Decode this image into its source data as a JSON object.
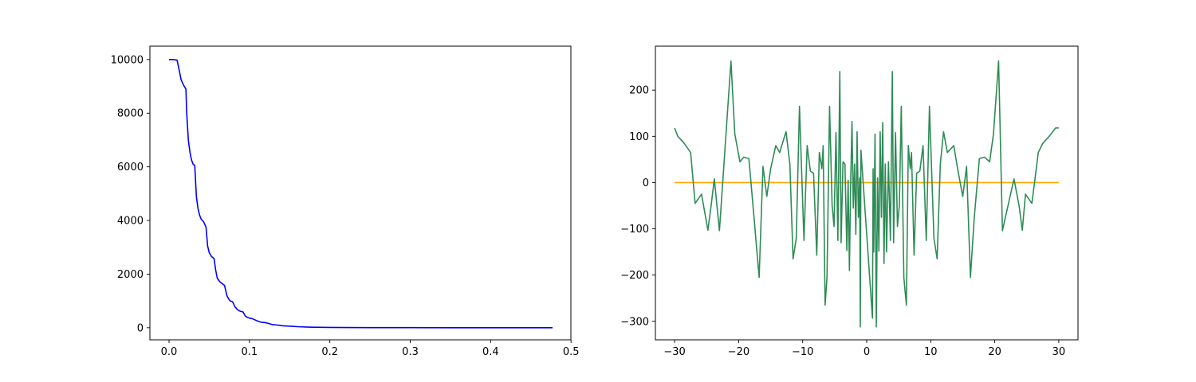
{
  "chart_data": [
    {
      "type": "line",
      "title": "",
      "xlabel": "",
      "ylabel": "",
      "xlim": [
        -0.0238,
        0.4998
      ],
      "ylim": [
        -450,
        10500
      ],
      "xticks": [
        0.0,
        0.1,
        0.2,
        0.3,
        0.4,
        0.5
      ],
      "xtick_labels": [
        "0.0",
        "0.1",
        "0.2",
        "0.3",
        "0.4",
        "0.5"
      ],
      "yticks": [
        0,
        2000,
        4000,
        6000,
        8000,
        10000
      ],
      "ytick_labels": [
        "0",
        "2000",
        "4000",
        "6000",
        "8000",
        "10000"
      ],
      "grid": false,
      "legend": "none",
      "series": [
        {
          "color": "#0000ff",
          "x": [
            0.0,
            0.005,
            0.01,
            0.012,
            0.015,
            0.018,
            0.021,
            0.022,
            0.024,
            0.026,
            0.028,
            0.03,
            0.032,
            0.034,
            0.036,
            0.038,
            0.04,
            0.043,
            0.046,
            0.048,
            0.05,
            0.053,
            0.056,
            0.058,
            0.06,
            0.063,
            0.066,
            0.069,
            0.072,
            0.074,
            0.076,
            0.079,
            0.082,
            0.085,
            0.087,
            0.089,
            0.092,
            0.095,
            0.098,
            0.1,
            0.102,
            0.105,
            0.11,
            0.113,
            0.116,
            0.12,
            0.125,
            0.128,
            0.132,
            0.138,
            0.142,
            0.147,
            0.152,
            0.16,
            0.17,
            0.18,
            0.2,
            0.22,
            0.25,
            0.3,
            0.35,
            0.4,
            0.45,
            0.477
          ],
          "values": [
            10000,
            10000,
            9980,
            9700,
            9250,
            9050,
            8900,
            8000,
            7000,
            6550,
            6250,
            6100,
            6050,
            4900,
            4450,
            4200,
            4050,
            3950,
            3750,
            3050,
            2800,
            2650,
            2580,
            2150,
            1850,
            1720,
            1650,
            1580,
            1200,
            1080,
            1000,
            970,
            780,
            680,
            640,
            610,
            590,
            430,
            380,
            360,
            350,
            320,
            250,
            220,
            200,
            190,
            150,
            120,
            110,
            90,
            70,
            65,
            55,
            40,
            28,
            20,
            12,
            8,
            5,
            3,
            2,
            1,
            0,
            0
          ]
        }
      ]
    },
    {
      "type": "line",
      "title": "",
      "xlabel": "",
      "ylabel": "",
      "xlim": [
        -33.0,
        33.0
      ],
      "ylim": [
        -340,
        295
      ],
      "xticks": [
        -30,
        -20,
        -10,
        0,
        10,
        20,
        30
      ],
      "xtick_labels": [
        "−30",
        "−20",
        "−10",
        "0",
        "10",
        "20",
        "30"
      ],
      "yticks": [
        -300,
        -200,
        -100,
        0,
        100,
        200
      ],
      "ytick_labels": [
        "−300",
        "−200",
        "−100",
        "0",
        "100",
        "200"
      ],
      "grid": false,
      "legend": "none",
      "series": [
        {
          "color": "#ffa500",
          "x": [
            -30,
            30
          ],
          "values": [
            0,
            0
          ]
        },
        {
          "color": "#2e8b57",
          "x": [
            -30,
            -29.5,
            -28.5,
            -27.5,
            -26.8,
            -25.8,
            -24.8,
            -24.3,
            -23.8,
            -23.0,
            -21.2,
            -20.6,
            -19.8,
            -19.2,
            -18.4,
            -17.6,
            -16.8,
            -16.2,
            -15.6,
            -15.0,
            -14.2,
            -13.6,
            -12.6,
            -12.0,
            -11.5,
            -11.0,
            -10.5,
            -9.8,
            -9.3,
            -8.8,
            -8.3,
            -7.8,
            -7.4,
            -7.0,
            -6.8,
            -6.5,
            -6.2,
            -5.8,
            -5.4,
            -5.1,
            -4.8,
            -4.5,
            -4.2,
            -4.0,
            -3.7,
            -3.4,
            -3.1,
            -2.9,
            -2.7,
            -2.5,
            -2.3,
            -2.1,
            -1.9,
            -1.7,
            -1.5,
            -1.3,
            -1.1,
            -1.0,
            -0.9,
            0.9,
            1.0,
            1.1,
            1.3,
            1.5,
            1.7,
            1.9,
            2.1,
            2.3,
            2.5,
            2.7,
            2.9,
            3.1,
            3.4,
            3.7,
            4.0,
            4.2,
            4.5,
            4.8,
            5.1,
            5.4,
            5.8,
            6.2,
            6.5,
            6.8,
            7.0,
            7.4,
            7.8,
            8.3,
            8.8,
            9.3,
            9.8,
            10.5,
            11.0,
            11.5,
            12.0,
            12.6,
            13.6,
            14.2,
            15.0,
            15.6,
            16.2,
            16.8,
            17.6,
            18.4,
            19.2,
            19.8,
            20.6,
            21.2,
            23.0,
            23.8,
            24.3,
            24.8,
            25.8,
            26.8,
            27.5,
            28.5,
            29.5,
            30
          ],
          "values": [
            118,
            100,
            85,
            65,
            -45,
            -25,
            -103,
            -50,
            8,
            -104,
            263,
            105,
            45,
            55,
            52,
            -75,
            -205,
            35,
            -30,
            30,
            80,
            65,
            110,
            40,
            -165,
            -120,
            165,
            -125,
            80,
            25,
            20,
            -157,
            65,
            30,
            80,
            -265,
            -205,
            165,
            -50,
            -95,
            108,
            -125,
            240,
            -130,
            45,
            40,
            -147,
            5,
            -190,
            0,
            132,
            -55,
            40,
            -112,
            110,
            -75,
            10,
            -312,
            70,
            -293,
            30,
            -150,
            105,
            -312,
            10,
            -148,
            110,
            -75,
            130,
            -175,
            40,
            -150,
            45,
            -125,
            240,
            -130,
            108,
            -95,
            -50,
            165,
            -205,
            -265,
            80,
            30,
            65,
            -157,
            20,
            25,
            80,
            -125,
            165,
            -120,
            -165,
            40,
            110,
            65,
            80,
            30,
            -30,
            35,
            -205,
            -75,
            52,
            55,
            45,
            105,
            263,
            -104,
            8,
            -50,
            -103,
            -25,
            -45,
            65,
            85,
            100,
            118,
            118
          ]
        }
      ]
    }
  ]
}
